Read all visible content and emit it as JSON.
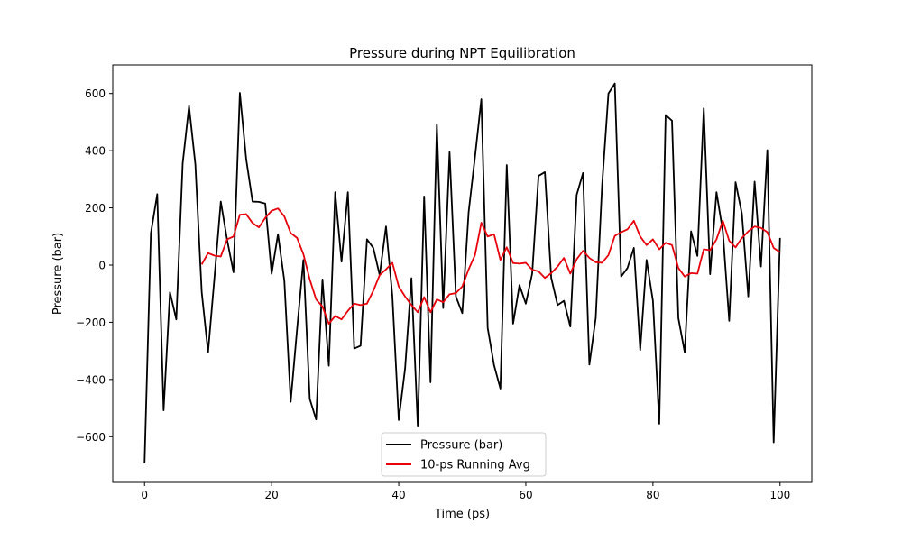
{
  "chart_data": {
    "type": "line",
    "title": "Pressure during NPT Equilibration",
    "xlabel": "Time (ps)",
    "ylabel": "Pressure (bar)",
    "xlim": [
      -5,
      105
    ],
    "ylim": [
      -760,
      700
    ],
    "xticks": [
      0,
      20,
      40,
      60,
      80,
      100
    ],
    "yticks": [
      -600,
      -400,
      -200,
      0,
      200,
      400,
      600
    ],
    "xtick_labels": [
      "0",
      "20",
      "40",
      "60",
      "80",
      "100"
    ],
    "ytick_labels": [
      "−600",
      "−400",
      "−200",
      "0",
      "200",
      "400",
      "600"
    ],
    "grid": false,
    "legend_position": "lower-center",
    "series": [
      {
        "name": "Pressure (bar)",
        "color": "#000000",
        "x": [
          0,
          1,
          2,
          3,
          4,
          5,
          6,
          7,
          8,
          9,
          10,
          11,
          12,
          13,
          14,
          15,
          16,
          17,
          18,
          19,
          20,
          21,
          22,
          23,
          24,
          25,
          26,
          27,
          28,
          29,
          30,
          31,
          32,
          33,
          34,
          35,
          36,
          37,
          38,
          39,
          40,
          41,
          42,
          43,
          44,
          45,
          46,
          47,
          48,
          49,
          50,
          51,
          52,
          53,
          54,
          55,
          56,
          57,
          58,
          59,
          60,
          61,
          62,
          63,
          64,
          65,
          66,
          67,
          68,
          69,
          70,
          71,
          72,
          73,
          74,
          75,
          76,
          77,
          78,
          79,
          80,
          81,
          82,
          83,
          84,
          85,
          86,
          87,
          88,
          89,
          90,
          91,
          92,
          93,
          94,
          95,
          96,
          97,
          98,
          99,
          100
        ],
        "y": [
          -693,
          112,
          248,
          -508,
          -95,
          -190,
          355,
          556,
          352,
          -95,
          -305,
          -45,
          222,
          88,
          -25,
          602,
          370,
          222,
          221,
          215,
          -30,
          108,
          -55,
          -478,
          -225,
          18,
          -468,
          -540,
          -50,
          -352,
          255,
          12,
          255,
          -292,
          -282,
          90,
          60,
          -35,
          135,
          -108,
          -542,
          -362,
          -46,
          -565,
          240,
          -410,
          492,
          -150,
          395,
          -110,
          -168,
          185,
          378,
          580,
          -220,
          -350,
          -432,
          350,
          -205,
          -70,
          -135,
          -30,
          312,
          325,
          -45,
          -140,
          -125,
          -215,
          245,
          322,
          -348,
          -185,
          278,
          600,
          635,
          -40,
          -10,
          60,
          -297,
          18,
          -125,
          -555,
          525,
          505,
          -185,
          -305,
          118,
          32,
          548,
          -32,
          255,
          118,
          -195,
          290,
          180,
          -110,
          292,
          -5,
          402,
          -620,
          95
        ]
      },
      {
        "name": "10-ps Running Avg",
        "color": "#e8000b",
        "x": [
          9,
          10,
          11,
          12,
          13,
          14,
          15,
          16,
          17,
          18,
          19,
          20,
          21,
          22,
          23,
          24,
          25,
          26,
          27,
          28,
          29,
          30,
          31,
          32,
          33,
          34,
          35,
          36,
          37,
          38,
          39,
          40,
          41,
          42,
          43,
          44,
          45,
          46,
          47,
          48,
          49,
          50,
          51,
          52,
          53,
          54,
          55,
          56,
          57,
          58,
          59,
          60,
          61,
          62,
          63,
          64,
          65,
          66,
          67,
          68,
          69,
          70,
          71,
          72,
          73,
          74,
          75,
          76,
          77,
          78,
          79,
          80,
          81,
          82,
          83,
          84,
          85,
          86,
          87,
          88,
          89,
          90,
          91,
          92,
          93,
          94,
          95,
          96,
          97,
          98,
          99,
          100
        ],
        "y": [
          2,
          42,
          33,
          30,
          90,
          100,
          176,
          178,
          147,
          132,
          165,
          190,
          198,
          170,
          112,
          95,
          38,
          -50,
          -120,
          -145,
          -205,
          -178,
          -190,
          -160,
          -135,
          -140,
          -135,
          -90,
          -35,
          -15,
          8,
          -75,
          -110,
          -140,
          -165,
          -112,
          -165,
          -120,
          -130,
          -102,
          -98,
          -75,
          -15,
          35,
          148,
          100,
          108,
          18,
          62,
          7,
          5,
          8,
          -16,
          -22,
          -45,
          -28,
          -5,
          25,
          -30,
          20,
          50,
          25,
          10,
          8,
          35,
          102,
          115,
          125,
          155,
          100,
          70,
          90,
          55,
          78,
          70,
          -10,
          -40,
          -28,
          -30,
          55,
          52,
          90,
          155,
          85,
          62,
          95,
          118,
          135,
          130,
          115,
          60,
          45
        ]
      }
    ]
  }
}
